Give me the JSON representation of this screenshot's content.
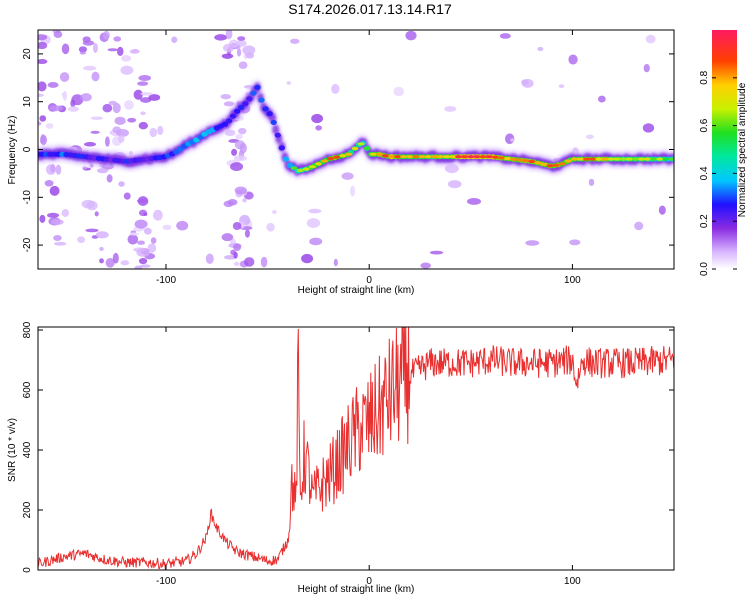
{
  "title": "S174.2026.017.13.14.R17",
  "chart_data": [
    {
      "type": "heatmap",
      "xlabel": "Height of straight line (km)",
      "ylabel": "Frequency (Hz)",
      "xlim": [
        -163,
        150
      ],
      "ylim": [
        -25,
        25
      ],
      "xticks": [
        -100,
        0,
        100
      ],
      "xtick_labels": [
        "-100",
        "0",
        "100"
      ],
      "yticks": [
        -20,
        -10,
        0,
        10,
        20
      ],
      "ytick_labels": [
        "-20",
        "-10",
        "0",
        "10",
        "20"
      ],
      "colorbar": {
        "label": "Normalized spectral amplitude",
        "range": [
          0,
          1
        ],
        "ticks": [
          0,
          0.2,
          0.4,
          0.6,
          0.8
        ],
        "tick_labels": [
          "0.0",
          "0.2",
          "0.4",
          "0.6",
          "0.8"
        ]
      },
      "ridge": {
        "x": [
          -163,
          -150,
          -140,
          -130,
          -120,
          -110,
          -100,
          -95,
          -90,
          -85,
          -80,
          -75,
          -70,
          -65,
          -60,
          -55,
          -52,
          -48,
          -45,
          -42,
          -40,
          -35,
          -30,
          -25,
          -20,
          -15,
          -10,
          -5,
          -2,
          0,
          5,
          10,
          20,
          30,
          40,
          50,
          60,
          70,
          80,
          85,
          90,
          95,
          100,
          110,
          120,
          130,
          140,
          150
        ],
        "y": [
          -1,
          -1,
          -1.5,
          -2,
          -2.5,
          -2,
          -1.5,
          -0.5,
          1,
          2,
          3.5,
          4.5,
          5.5,
          8,
          10,
          13,
          9,
          7,
          3,
          -1,
          -3,
          -4.5,
          -4,
          -3,
          -2,
          -1.5,
          -1,
          1,
          1.5,
          -1,
          -1,
          -1.5,
          -1.5,
          -1.5,
          -1.5,
          -1.5,
          -1.5,
          -2,
          -2.5,
          -3,
          -3.5,
          -3,
          -2,
          -2,
          -2,
          -2,
          -2,
          -2
        ],
        "amplitude": [
          0.35,
          0.4,
          0.35,
          0.3,
          0.35,
          0.3,
          0.35,
          0.4,
          0.4,
          0.45,
          0.45,
          0.4,
          0.35,
          0.35,
          0.35,
          0.4,
          0.35,
          0.4,
          0.3,
          0.4,
          0.45,
          0.55,
          0.7,
          0.75,
          0.8,
          0.8,
          0.7,
          0.6,
          0.6,
          0.65,
          0.8,
          0.85,
          0.75,
          0.7,
          0.8,
          0.95,
          0.9,
          0.75,
          0.85,
          0.8,
          0.85,
          0.8,
          0.75,
          0.8,
          0.7,
          0.65,
          0.6,
          0.55
        ]
      }
    },
    {
      "type": "line",
      "xlabel": "Height of straight line (km)",
      "ylabel": "SNR (10 * v/v)",
      "xlim": [
        -163,
        150
      ],
      "ylim": [
        0,
        810
      ],
      "xticks": [
        -100,
        0,
        100
      ],
      "xtick_labels": [
        "-100",
        "0",
        "100"
      ],
      "yticks": [
        0,
        200,
        400,
        600,
        800
      ],
      "ytick_labels": [
        "0",
        "200",
        "400",
        "600",
        "800"
      ],
      "color": "#e83030",
      "series": [
        {
          "name": "SNR",
          "x": [
            -163,
            -150,
            -140,
            -130,
            -120,
            -110,
            -100,
            -90,
            -85,
            -80,
            -78,
            -75,
            -70,
            -65,
            -60,
            -55,
            -50,
            -45,
            -40,
            -38,
            -36,
            -35,
            -34,
            -32,
            -30,
            -28,
            -25,
            -20,
            -15,
            -10,
            -5,
            0,
            5,
            10,
            15,
            20,
            25,
            30,
            40,
            50,
            60,
            70,
            80,
            90,
            100,
            102,
            105,
            110,
            120,
            130,
            140,
            150
          ],
          "values": [
            20,
            45,
            55,
            35,
            25,
            25,
            20,
            30,
            55,
            110,
            190,
            140,
            90,
            60,
            50,
            40,
            30,
            35,
            100,
            300,
            220,
            650,
            250,
            380,
            330,
            240,
            270,
            310,
            360,
            420,
            470,
            490,
            530,
            580,
            620,
            650,
            670,
            690,
            690,
            690,
            700,
            690,
            690,
            690,
            700,
            620,
            700,
            690,
            690,
            690,
            695,
            700
          ]
        }
      ]
    }
  ]
}
